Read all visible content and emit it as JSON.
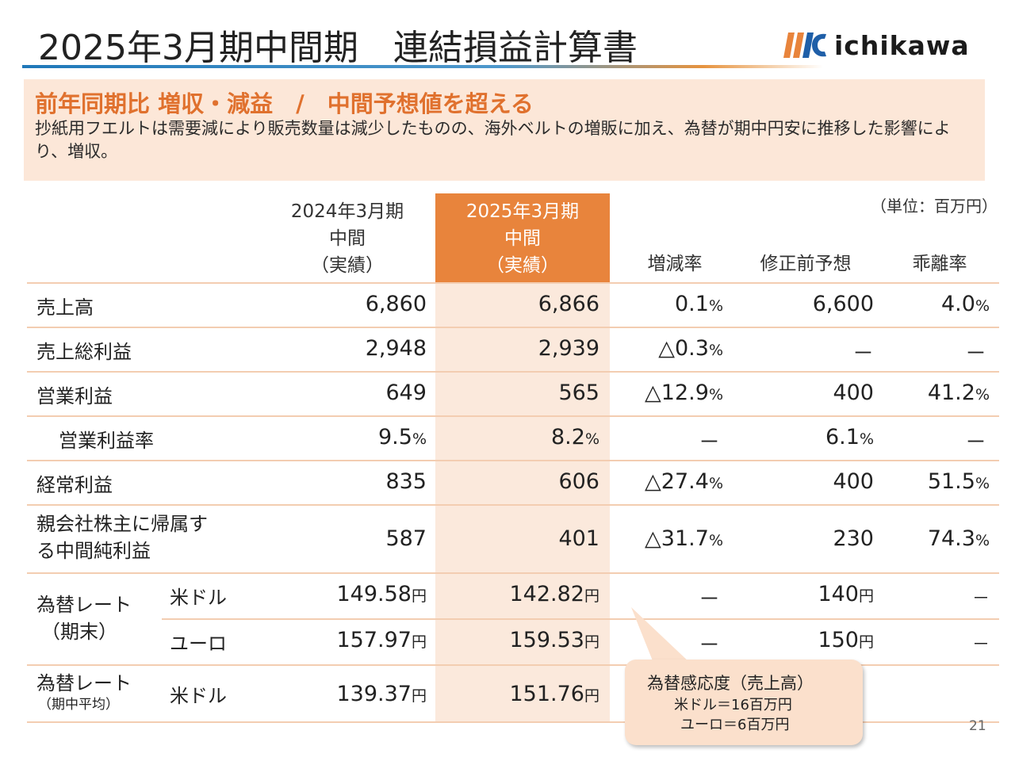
{
  "title": "2025年3月期中間期　連結損益計算書",
  "logo": {
    "text": "ichikawa"
  },
  "summary": {
    "headline": "前年同期比 増収・減益　/　中間予想値を超える",
    "body": "抄紙用フエルトは需要減により販売数量は減少したものの、海外ベルトの増販に加え、為替が期中円安に推移した影響により、増収。"
  },
  "unit": "（単位：百万円）",
  "columns": {
    "prev": [
      "2024年3月期",
      "中間",
      "（実績）"
    ],
    "curr": [
      "2025年3月期",
      "中間",
      "（実績）"
    ],
    "change": "増減率",
    "forecast": "修正前予想",
    "variance": "乖離率"
  },
  "rows": [
    {
      "label": "売上高",
      "prev": "6,860",
      "curr": "6,866",
      "change": "0.1",
      "change_unit": "%",
      "forecast": "6,600",
      "forecast_unit": "",
      "variance": "4.0",
      "variance_unit": "%"
    },
    {
      "label": "売上総利益",
      "prev": "2,948",
      "curr": "2,939",
      "change": "△0.3",
      "change_unit": "%",
      "forecast": "－",
      "forecast_unit": "",
      "variance": "－",
      "variance_unit": ""
    },
    {
      "label": "営業利益",
      "prev": "649",
      "curr": "565",
      "change": "△12.9",
      "change_unit": "%",
      "forecast": "400",
      "forecast_unit": "",
      "variance": "41.2",
      "variance_unit": "%"
    },
    {
      "label": "営業利益率",
      "prev": "9.5",
      "prev_unit": "%",
      "curr": "8.2",
      "curr_unit": "%",
      "change": "－",
      "change_unit": "",
      "forecast": "6.1",
      "forecast_unit": "%",
      "variance": "－",
      "variance_unit": ""
    },
    {
      "label": "経常利益",
      "prev": "835",
      "curr": "606",
      "change": "△27.4",
      "change_unit": "%",
      "forecast": "400",
      "forecast_unit": "",
      "variance": "51.5",
      "variance_unit": "%"
    },
    {
      "label_lines": [
        "親会社株主に帰属す",
        "る中間純利益"
      ],
      "prev": "587",
      "curr": "401",
      "change": "△31.7",
      "change_unit": "%",
      "forecast": "230",
      "forecast_unit": "",
      "variance": "74.3",
      "variance_unit": "%"
    }
  ],
  "fx_end": {
    "label": [
      "為替レート",
      "（期末）"
    ],
    "usd": {
      "label": "米ドル",
      "prev": "149.58",
      "curr": "142.82",
      "change": "－",
      "forecast": "140",
      "variance": "－"
    },
    "eur": {
      "label": "ユーロ",
      "prev": "157.97",
      "curr": "159.53",
      "change": "－",
      "forecast": "150",
      "variance": "－"
    }
  },
  "fx_avg": {
    "label": [
      "為替レート",
      "（期中平均）"
    ],
    "usd": {
      "label": "米ドル",
      "prev": "139.37",
      "curr": "151.76"
    }
  },
  "yen_unit": "円",
  "callout": {
    "title": "為替感応度（売上高）",
    "line1": "米ドル＝16百万円",
    "line2": "ユーロ＝6百万円"
  },
  "page_number": "21"
}
